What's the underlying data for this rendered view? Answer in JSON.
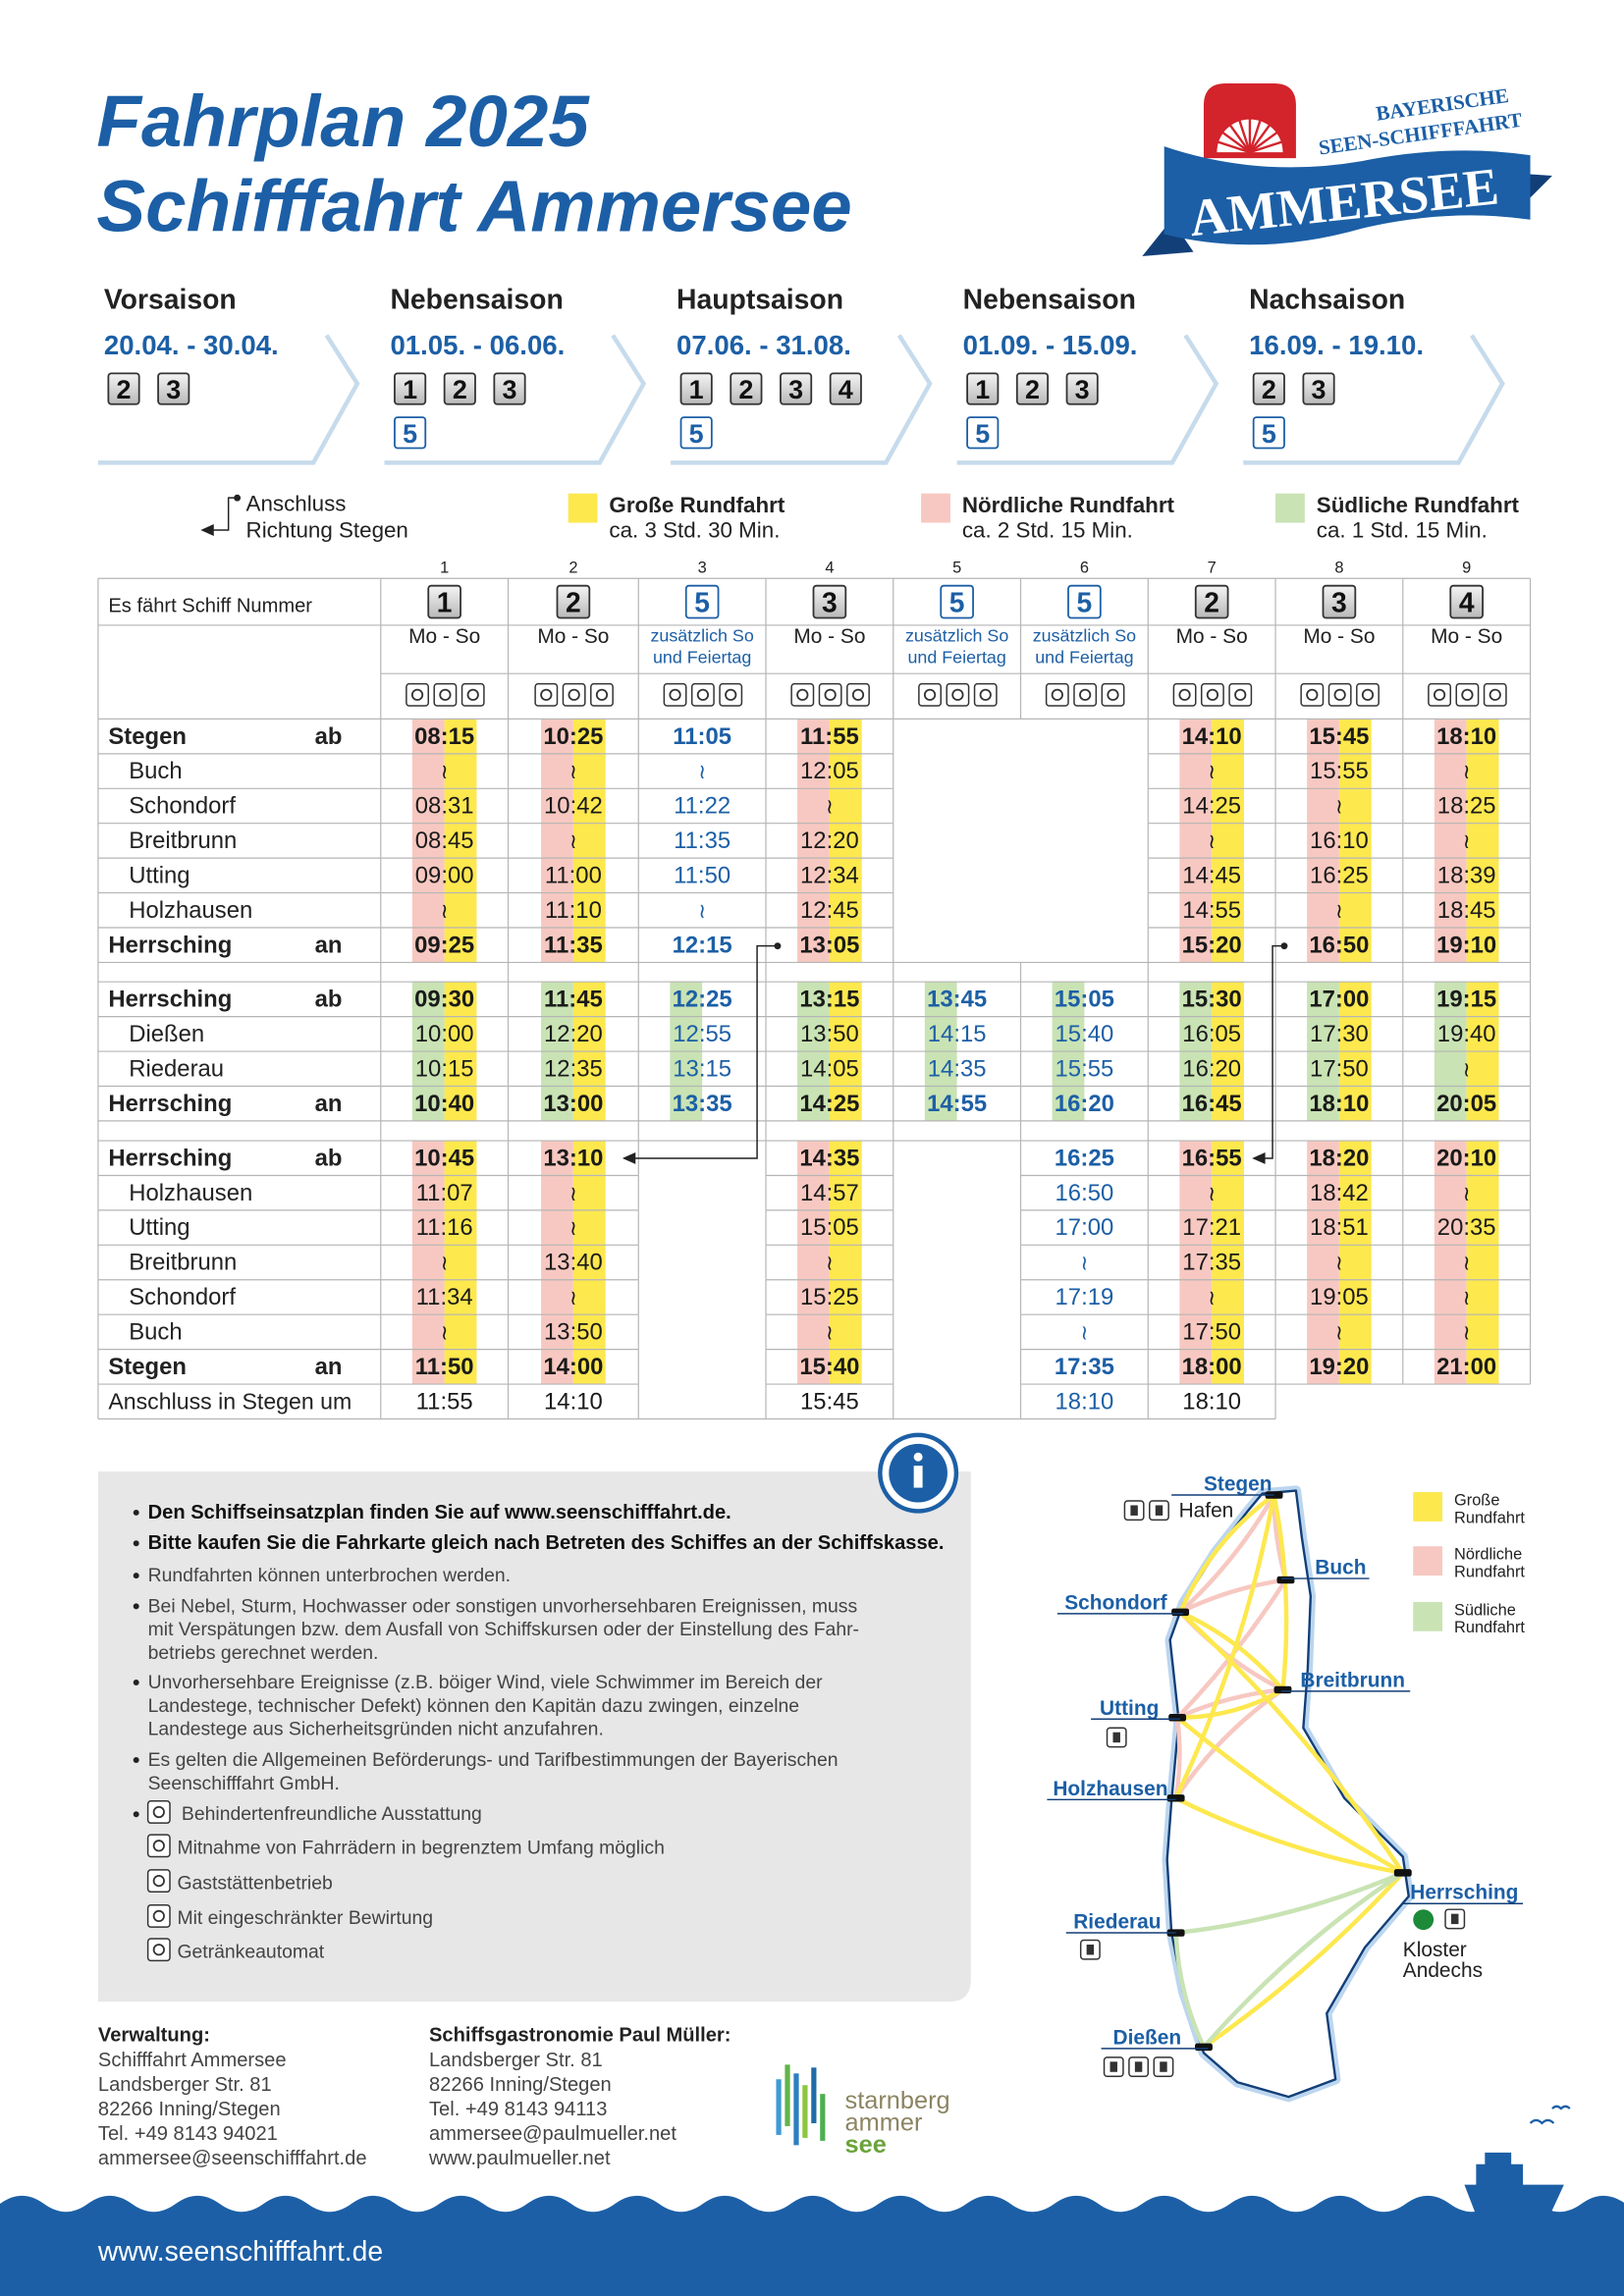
{
  "header": {
    "title": [
      "Fahrplan 2025",
      "Schifffahrt Ammersee"
    ]
  },
  "logo": {
    "line1": "BAYERISCHE",
    "line2": "SEEN-SCHIFFFAHRT",
    "name": "AMMERSEE"
  },
  "seasons": [
    {
      "name": "Vorsaison",
      "dates": "20.04. - 30.04.",
      "ships": [
        "2",
        "3"
      ]
    },
    {
      "name": "Nebensaison",
      "dates": "01.05. - 06.06.",
      "ships": [
        "1",
        "2",
        "3"
      ],
      "extra": [
        "5"
      ]
    },
    {
      "name": "Hauptsaison",
      "dates": "07.06. - 31.08.",
      "ships": [
        "1",
        "2",
        "3",
        "4"
      ],
      "extra": [
        "5"
      ]
    },
    {
      "name": "Nebensaison",
      "dates": "01.09. - 15.09.",
      "ships": [
        "1",
        "2",
        "3"
      ],
      "extra": [
        "5"
      ]
    },
    {
      "name": "Nachsaison",
      "dates": "16.09. - 19.10.",
      "ships": [
        "2",
        "3"
      ],
      "extra": [
        "5"
      ]
    }
  ],
  "legend": {
    "connection": [
      "Anschluss",
      "Richtung Stegen"
    ],
    "tours": [
      {
        "name": "Große Rundfahrt",
        "duration": "ca. 3 Std. 30 Min.",
        "color": "#fde84e"
      },
      {
        "name": "Nördliche Rundfahrt",
        "duration": "ca. 2 Std. 15 Min.",
        "color": "#f7c8c1"
      },
      {
        "name": "Südliche Rundfahrt",
        "duration": "ca. 1 Std. 15 Min.",
        "color": "#c9e3b4"
      }
    ]
  },
  "table": {
    "column_numbers": [
      "1",
      "2",
      "3",
      "4",
      "5",
      "6",
      "7",
      "8",
      "9"
    ],
    "ship_label": "Es fährt Schiff Nummer",
    "ships": [
      "1",
      "2",
      "5",
      "3",
      "5",
      "5",
      "2",
      "3",
      "4"
    ],
    "days": [
      [
        "Mo - So"
      ],
      [
        "Mo - So"
      ],
      [
        "zusätzlich So",
        "und Feiertag"
      ],
      [
        "Mo - So"
      ],
      [
        "zusätzlich So",
        "und Feiertag"
      ],
      [
        "zusätzlich So",
        "und Feiertag"
      ],
      [
        "Mo - So"
      ],
      [
        "Mo - So"
      ],
      [
        "Mo - So"
      ]
    ],
    "sections": [
      {
        "rows": [
          {
            "stop": "Stegen",
            "dir": "ab",
            "times": [
              "08:15",
              "10:25",
              "11:05",
              "11:55",
              null,
              null,
              "14:10",
              "15:45",
              "18:10"
            ]
          },
          {
            "stop": "Buch",
            "times": [
              "≀",
              "≀",
              "≀",
              "12:05",
              null,
              null,
              "≀",
              "15:55",
              "≀"
            ]
          },
          {
            "stop": "Schondorf",
            "times": [
              "08:31",
              "10:42",
              "11:22",
              "≀",
              null,
              null,
              "14:25",
              "≀",
              "18:25"
            ]
          },
          {
            "stop": "Breitbrunn",
            "times": [
              "08:45",
              "≀",
              "11:35",
              "12:20",
              null,
              null,
              "≀",
              "16:10",
              "≀"
            ]
          },
          {
            "stop": "Utting",
            "times": [
              "09:00",
              "11:00",
              "11:50",
              "12:34",
              null,
              null,
              "14:45",
              "16:25",
              "18:39"
            ]
          },
          {
            "stop": "Holzhausen",
            "times": [
              "≀",
              "11:10",
              "≀",
              "12:45",
              null,
              null,
              "14:55",
              "≀",
              "18:45"
            ]
          },
          {
            "stop": "Herrsching",
            "dir": "an",
            "times": [
              "09:25",
              "11:35",
              "12:15",
              "13:05",
              null,
              null,
              "15:20",
              "16:50",
              "19:10"
            ]
          }
        ]
      },
      {
        "rows": [
          {
            "stop": "Herrsching",
            "dir": "ab",
            "times": [
              "09:30",
              "11:45",
              "12:25",
              "13:15",
              "13:45",
              "15:05",
              "15:30",
              "17:00",
              "19:15"
            ]
          },
          {
            "stop": "Dießen",
            "times": [
              "10:00",
              "12:20",
              "12:55",
              "13:50",
              "14:15",
              "15:40",
              "16:05",
              "17:30",
              "19:40"
            ]
          },
          {
            "stop": "Riederau",
            "times": [
              "10:15",
              "12:35",
              "13:15",
              "14:05",
              "14:35",
              "15:55",
              "16:20",
              "17:50",
              "≀"
            ]
          },
          {
            "stop": "Herrsching",
            "dir": "an",
            "times": [
              "10:40",
              "13:00",
              "13:35",
              "14:25",
              "14:55",
              "16:20",
              "16:45",
              "18:10",
              "20:05"
            ]
          }
        ]
      },
      {
        "rows": [
          {
            "stop": "Herrsching",
            "dir": "ab",
            "times": [
              "10:45",
              "13:10",
              null,
              "14:35",
              null,
              "16:25",
              "16:55",
              "18:20",
              "20:10"
            ]
          },
          {
            "stop": "Holzhausen",
            "times": [
              "11:07",
              "≀",
              null,
              "14:57",
              null,
              "16:50",
              "≀",
              "18:42",
              "≀"
            ]
          },
          {
            "stop": "Utting",
            "times": [
              "11:16",
              "≀",
              null,
              "15:05",
              null,
              "17:00",
              "17:21",
              "18:51",
              "20:35"
            ]
          },
          {
            "stop": "Breitbrunn",
            "times": [
              "≀",
              "13:40",
              null,
              "≀",
              null,
              "≀",
              "17:35",
              "≀",
              "≀"
            ]
          },
          {
            "stop": "Schondorf",
            "times": [
              "11:34",
              "≀",
              null,
              "15:25",
              null,
              "17:19",
              "≀",
              "19:05",
              "≀"
            ]
          },
          {
            "stop": "Buch",
            "times": [
              "≀",
              "13:50",
              null,
              "≀",
              null,
              "≀",
              "17:50",
              "≀",
              "≀"
            ]
          },
          {
            "stop": "Stegen",
            "dir": "an",
            "times": [
              "11:50",
              "14:00",
              null,
              "15:40",
              null,
              "17:35",
              "18:00",
              "19:20",
              "21:00"
            ]
          }
        ]
      }
    ],
    "footer_row": {
      "stop": "Anschluss in Stegen um",
      "times": [
        "11:55",
        "14:10",
        null,
        "15:45",
        null,
        "18:10",
        "18:10",
        null,
        null
      ]
    }
  },
  "notes": [
    {
      "bold": true,
      "lines": [
        "Den Schiffseinsatzplan finden Sie auf www.seenschifffahrt.de."
      ]
    },
    {
      "bold": true,
      "lines": [
        "Bitte kaufen Sie die Fahrkarte gleich nach Betreten des Schiffes an der Schiffskasse."
      ]
    },
    {
      "lines": [
        "Rundfahrten können unterbrochen werden."
      ]
    },
    {
      "lines": [
        "Bei Nebel, Sturm, Hochwasser oder sonstigen unvorhersehbaren Ereignissen, muss",
        "mit Verspätungen bzw. dem Ausfall von Schiffskursen oder der Einstellung des Fahr-",
        "betriebs gerechnet werden."
      ]
    },
    {
      "lines": [
        "Unvorhersehbare Ereignisse (z.B. böiger Wind, viele Schwimmer im Bereich der",
        "Landestege, technischer Defekt) können den Kapitän dazu zwingen, einzelne",
        "Landestege aus Sicherheitsgründen nicht anzufahren."
      ]
    },
    {
      "lines": [
        "Es gelten die Allgemeinen Beförderungs- und Tarifbestimmungen der Bayerischen",
        "Seenschifffahrt GmbH."
      ]
    }
  ],
  "amenities": [
    "Behindertenfreundliche Ausstattung",
    "Mitnahme von Fahrrädern in begrenztem Umfang möglich",
    "Gaststättenbetrieb",
    "Mit eingeschränkter Bewirtung",
    "Getränkeautomat"
  ],
  "map": {
    "stops": [
      "Stegen",
      "Buch",
      "Schondorf",
      "Breitbrunn",
      "Utting",
      "Holzhausen",
      "Herrsching",
      "Riederau",
      "Dießen"
    ],
    "hafen": "Hafen",
    "destination": [
      "Kloster",
      "Andechs"
    ],
    "legend": [
      [
        "Große",
        "Rundfahrt"
      ],
      [
        "Nördliche",
        "Rundfahrt"
      ],
      [
        "Südliche",
        "Rundfahrt"
      ]
    ]
  },
  "contacts": [
    {
      "title": "Verwaltung:",
      "lines": [
        "Schifffahrt Ammersee",
        "Landsberger Str. 81",
        "82266 Inning/Stegen",
        "Tel. +49 8143 94021",
        "ammersee@seenschifffahrt.de"
      ]
    },
    {
      "title": "Schiffsgastronomie Paul Müller:",
      "lines": [
        "Landsberger Str. 81",
        "82266 Inning/Stegen",
        "Tel. +49 8143 94113",
        "ammersee@paulmueller.net",
        "www.paulmueller.net"
      ]
    }
  ],
  "brand": [
    "starnberg",
    "ammer",
    "see"
  ],
  "footer": {
    "url": "www.seenschifffahrt.de"
  }
}
